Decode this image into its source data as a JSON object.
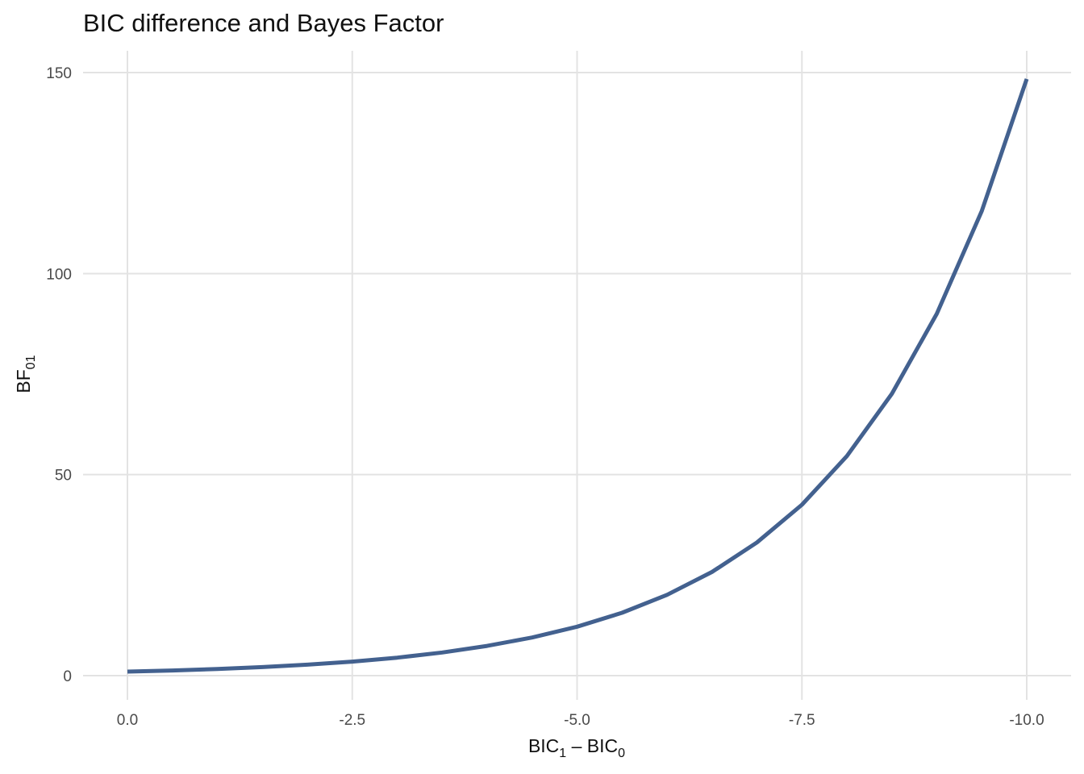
{
  "chart_data": {
    "type": "line",
    "title": "BIC difference and Bayes Factor",
    "xlabel": {
      "base": "BIC",
      "sub1": "1",
      "sep": " – BIC",
      "sub2": "0"
    },
    "ylabel": {
      "base": "BF",
      "sub": "01"
    },
    "xlim": [
      0,
      -10
    ],
    "ylim": [
      0,
      150
    ],
    "x_ticks": [
      0.0,
      -2.5,
      -5.0,
      -7.5,
      -10.0
    ],
    "x_tick_labels": [
      "0.0",
      "-2.5",
      "-5.0",
      "-7.5",
      "-10.0"
    ],
    "y_ticks": [
      0,
      50,
      100,
      150
    ],
    "y_tick_labels": [
      "0",
      "50",
      "100",
      "150"
    ],
    "grid": true,
    "line_color": "#43618f",
    "series": [
      {
        "x": [
          0,
          -0.5,
          -1,
          -1.5,
          -2,
          -2.5,
          -3,
          -3.5,
          -4,
          -4.5,
          -5,
          -5.5,
          -6,
          -6.5,
          -7,
          -7.5,
          -8,
          -8.5,
          -9,
          -9.5,
          -10
        ],
        "y": [
          1.0,
          1.28,
          1.65,
          2.12,
          2.72,
          3.49,
          4.48,
          5.75,
          7.39,
          9.49,
          12.18,
          15.64,
          20.09,
          25.79,
          33.12,
          42.52,
          54.6,
          70.11,
          90.02,
          115.58,
          148.41
        ]
      }
    ]
  }
}
